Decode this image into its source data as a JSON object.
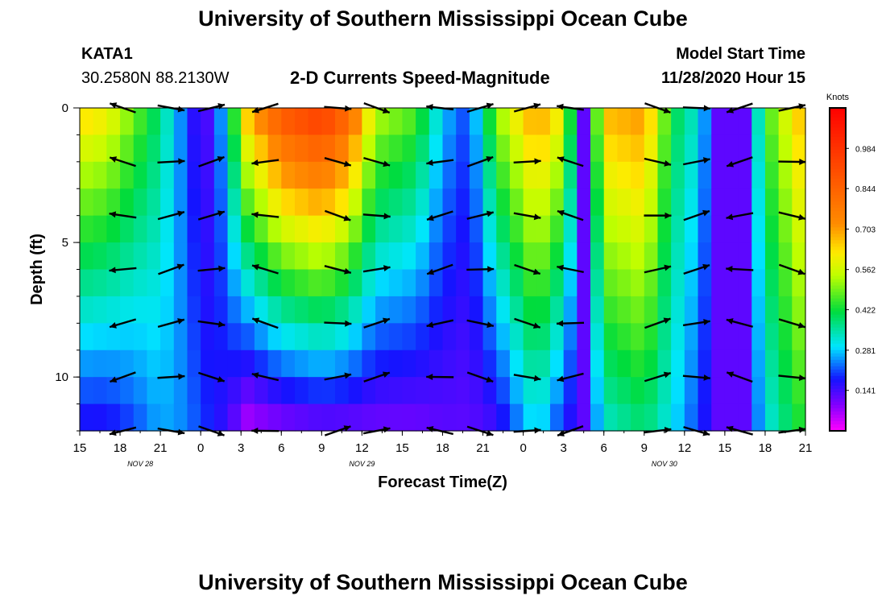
{
  "header": {
    "title": "University of Southern Mississippi Ocean Cube",
    "footer_title": "University of Southern Mississippi Ocean Cube",
    "station_id": "KATA1",
    "coordinates": "30.2580N 88.2130W",
    "chart_title": "2-D Currents Speed-Magnitude",
    "model_start_label": "Model Start Time",
    "model_start_time": "11/28/2020 Hour 15"
  },
  "chart_data": {
    "type": "heatmap",
    "title": "2-D Currents Speed-Magnitude",
    "xlabel": "Forecast Time(Z)",
    "ylabel": "Depth (ft)",
    "x_ticks": [
      "15",
      "18",
      "21",
      "0",
      "3",
      "6",
      "9",
      "12",
      "15",
      "18",
      "21",
      "0",
      "3",
      "6",
      "9",
      "12",
      "15",
      "18",
      "21"
    ],
    "x_range_hours": [
      0,
      54
    ],
    "day_labels": [
      {
        "label": "NOV  28",
        "hour": 4.5
      },
      {
        "label": "NOV  29",
        "hour": 21
      },
      {
        "label": "NOV  30",
        "hour": 43.5
      }
    ],
    "y_ticks": [
      "0",
      "5",
      "10"
    ],
    "y_tick_values": [
      0,
      5,
      10
    ],
    "y_range_ft": [
      0,
      12
    ],
    "colorbar": {
      "unit_label": "Knots",
      "min": 0,
      "max": 1.125,
      "tick_labels": [
        "0.984",
        "0.844",
        "0.703",
        "0.562",
        "0.422",
        "0.281",
        "0.141"
      ],
      "tick_values": [
        0.984,
        0.844,
        0.703,
        0.562,
        0.422,
        0.281,
        0.141
      ]
    },
    "arrow_depths_ft": [
      0,
      2,
      4,
      6,
      8,
      10,
      12
    ],
    "arrow_times_h": [
      1.2,
      4.4,
      8.0,
      11.0,
      15.0,
      20.4,
      23.3,
      28.0,
      31.0,
      34.5,
      37.7,
      44.2,
      47.1,
      50.3,
      54.2
    ],
    "speed_profile": [
      {
        "t": 0,
        "top": 0.65,
        "bottom": 0.16
      },
      {
        "t": 2,
        "top": 0.62,
        "bottom": 0.16
      },
      {
        "t": 4,
        "top": 0.5,
        "bottom": 0.2
      },
      {
        "t": 6,
        "top": 0.38,
        "bottom": 0.26
      },
      {
        "t": 8,
        "top": 0.2,
        "bottom": 0.24
      },
      {
        "t": 9,
        "top": 0.12,
        "bottom": 0.2
      },
      {
        "t": 10,
        "top": 0.15,
        "bottom": 0.18
      },
      {
        "t": 11,
        "top": 0.35,
        "bottom": 0.14
      },
      {
        "t": 12.5,
        "top": 0.68,
        "bottom": 0.05
      },
      {
        "t": 15,
        "top": 0.9,
        "bottom": 0.08
      },
      {
        "t": 18,
        "top": 0.98,
        "bottom": 0.1
      },
      {
        "t": 20,
        "top": 0.85,
        "bottom": 0.1
      },
      {
        "t": 22,
        "top": 0.55,
        "bottom": 0.1
      },
      {
        "t": 25,
        "top": 0.48,
        "bottom": 0.1
      },
      {
        "t": 27,
        "top": 0.28,
        "bottom": 0.12
      },
      {
        "t": 29,
        "top": 0.2,
        "bottom": 0.12
      },
      {
        "t": 31,
        "top": 0.52,
        "bottom": 0.14
      },
      {
        "t": 34,
        "top": 0.72,
        "bottom": 0.3
      },
      {
        "t": 36,
        "top": 0.6,
        "bottom": 0.18
      },
      {
        "t": 37.5,
        "top": 0.12,
        "bottom": 0.12
      },
      {
        "t": 39,
        "top": 0.68,
        "bottom": 0.32
      },
      {
        "t": 42,
        "top": 0.72,
        "bottom": 0.38
      },
      {
        "t": 44,
        "top": 0.42,
        "bottom": 0.3
      },
      {
        "t": 46,
        "top": 0.32,
        "bottom": 0.2
      },
      {
        "t": 47.5,
        "top": 0.12,
        "bottom": 0.12
      },
      {
        "t": 49.5,
        "top": 0.12,
        "bottom": 0.12
      },
      {
        "t": 51,
        "top": 0.45,
        "bottom": 0.3
      },
      {
        "t": 54,
        "top": 0.7,
        "bottom": 0.45
      }
    ]
  }
}
